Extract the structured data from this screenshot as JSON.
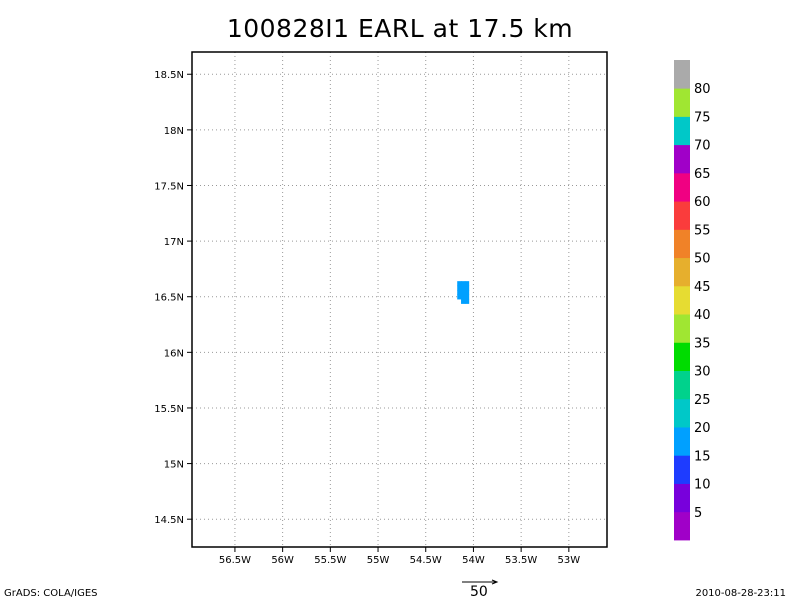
{
  "title": "100828I1 EARL at 17.5 km",
  "chart_data": {
    "type": "heatmap",
    "title": "100828I1 EARL at 17.5 km",
    "xlabel": "",
    "ylabel": "",
    "xlim": [
      -56.95,
      -52.6
    ],
    "ylim": [
      14.25,
      18.7
    ],
    "grid": true,
    "x_ticks": [
      {
        "value": -56.5,
        "label": "56.5W"
      },
      {
        "value": -56.0,
        "label": "56W"
      },
      {
        "value": -55.5,
        "label": "55.5W"
      },
      {
        "value": -55.0,
        "label": "55W"
      },
      {
        "value": -54.5,
        "label": "54.5W"
      },
      {
        "value": -54.0,
        "label": "54W"
      },
      {
        "value": -53.5,
        "label": "53.5W"
      },
      {
        "value": -53.0,
        "label": "53W"
      }
    ],
    "y_ticks": [
      {
        "value": 14.5,
        "label": "14.5N"
      },
      {
        "value": 15.0,
        "label": "15N"
      },
      {
        "value": 15.5,
        "label": "15.5N"
      },
      {
        "value": 16.0,
        "label": "16N"
      },
      {
        "value": 16.5,
        "label": "16.5N"
      },
      {
        "value": 17.0,
        "label": "17N"
      },
      {
        "value": 17.5,
        "label": "17.5N"
      },
      {
        "value": 18.0,
        "label": "18N"
      },
      {
        "value": 18.5,
        "label": "18.5N"
      }
    ],
    "cells": [
      {
        "lon": -54.15,
        "lat": 16.54,
        "value": 17.5
      },
      {
        "lon": -54.11,
        "lat": 16.54,
        "value": 17.5
      },
      {
        "lon": -54.07,
        "lat": 16.54,
        "value": 17.5
      },
      {
        "lon": -54.15,
        "lat": 16.58,
        "value": 17.5
      },
      {
        "lon": -54.11,
        "lat": 16.58,
        "value": 17.5
      },
      {
        "lon": -54.07,
        "lat": 16.58,
        "value": 17.5
      },
      {
        "lon": -54.15,
        "lat": 16.5,
        "value": 17.5
      },
      {
        "lon": -54.11,
        "lat": 16.5,
        "value": 17.5
      },
      {
        "lon": -54.07,
        "lat": 16.5,
        "value": 17.5
      },
      {
        "lon": -54.11,
        "lat": 16.46,
        "value": 17.5
      },
      {
        "lon": -54.07,
        "lat": 16.46,
        "value": 17.5
      },
      {
        "lon": -54.15,
        "lat": 16.62,
        "value": 17.5
      },
      {
        "lon": -54.11,
        "lat": 16.62,
        "value": 17.5
      },
      {
        "lon": -54.07,
        "lat": 16.62,
        "value": 17.5
      }
    ],
    "colorbar": {
      "labels": [
        "5",
        "10",
        "15",
        "20",
        "25",
        "30",
        "35",
        "40",
        "45",
        "50",
        "55",
        "60",
        "65",
        "70",
        "75",
        "80"
      ],
      "colors": [
        "#a000c8",
        "#7800dc",
        "#1e3cff",
        "#00a0ff",
        "#00c8c8",
        "#00d28c",
        "#00dc00",
        "#a0e632",
        "#e6dc32",
        "#e6af2d",
        "#f08228",
        "#fa3c3c",
        "#f00082",
        "#a000c8",
        "#00c8c8",
        "#a0e632",
        "#aaaaaa"
      ]
    }
  },
  "footer": {
    "left": "GrADS: COLA/IGES",
    "right": "2010-08-28-23:11",
    "vector_ref": "50"
  }
}
